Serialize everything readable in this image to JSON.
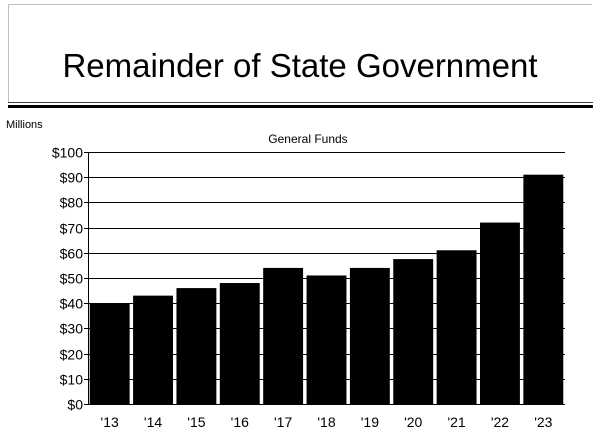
{
  "slide": {
    "title": "Remainder of State Government"
  },
  "chart_data": {
    "type": "bar",
    "title": "General Funds",
    "ylabel": "Millions",
    "xlabel": "",
    "categories": [
      "'13",
      "'14",
      "'15",
      "'16",
      "'17",
      "'18",
      "'19",
      "'20",
      "'21",
      "'22",
      "'23"
    ],
    "values": [
      40,
      43,
      46,
      48,
      54,
      51,
      54,
      57.5,
      61,
      72,
      91
    ],
    "ylim": [
      0,
      100
    ],
    "yticks": [
      0,
      10,
      20,
      30,
      40,
      50,
      60,
      70,
      80,
      90,
      100
    ],
    "ytick_labels": [
      "$0",
      "$10",
      "$20",
      "$30",
      "$40",
      "$50",
      "$60",
      "$70",
      "$80",
      "$90",
      "$100"
    ],
    "grid": true,
    "legend": "none",
    "bar_color": "#000000",
    "grid_color": "#000000"
  }
}
